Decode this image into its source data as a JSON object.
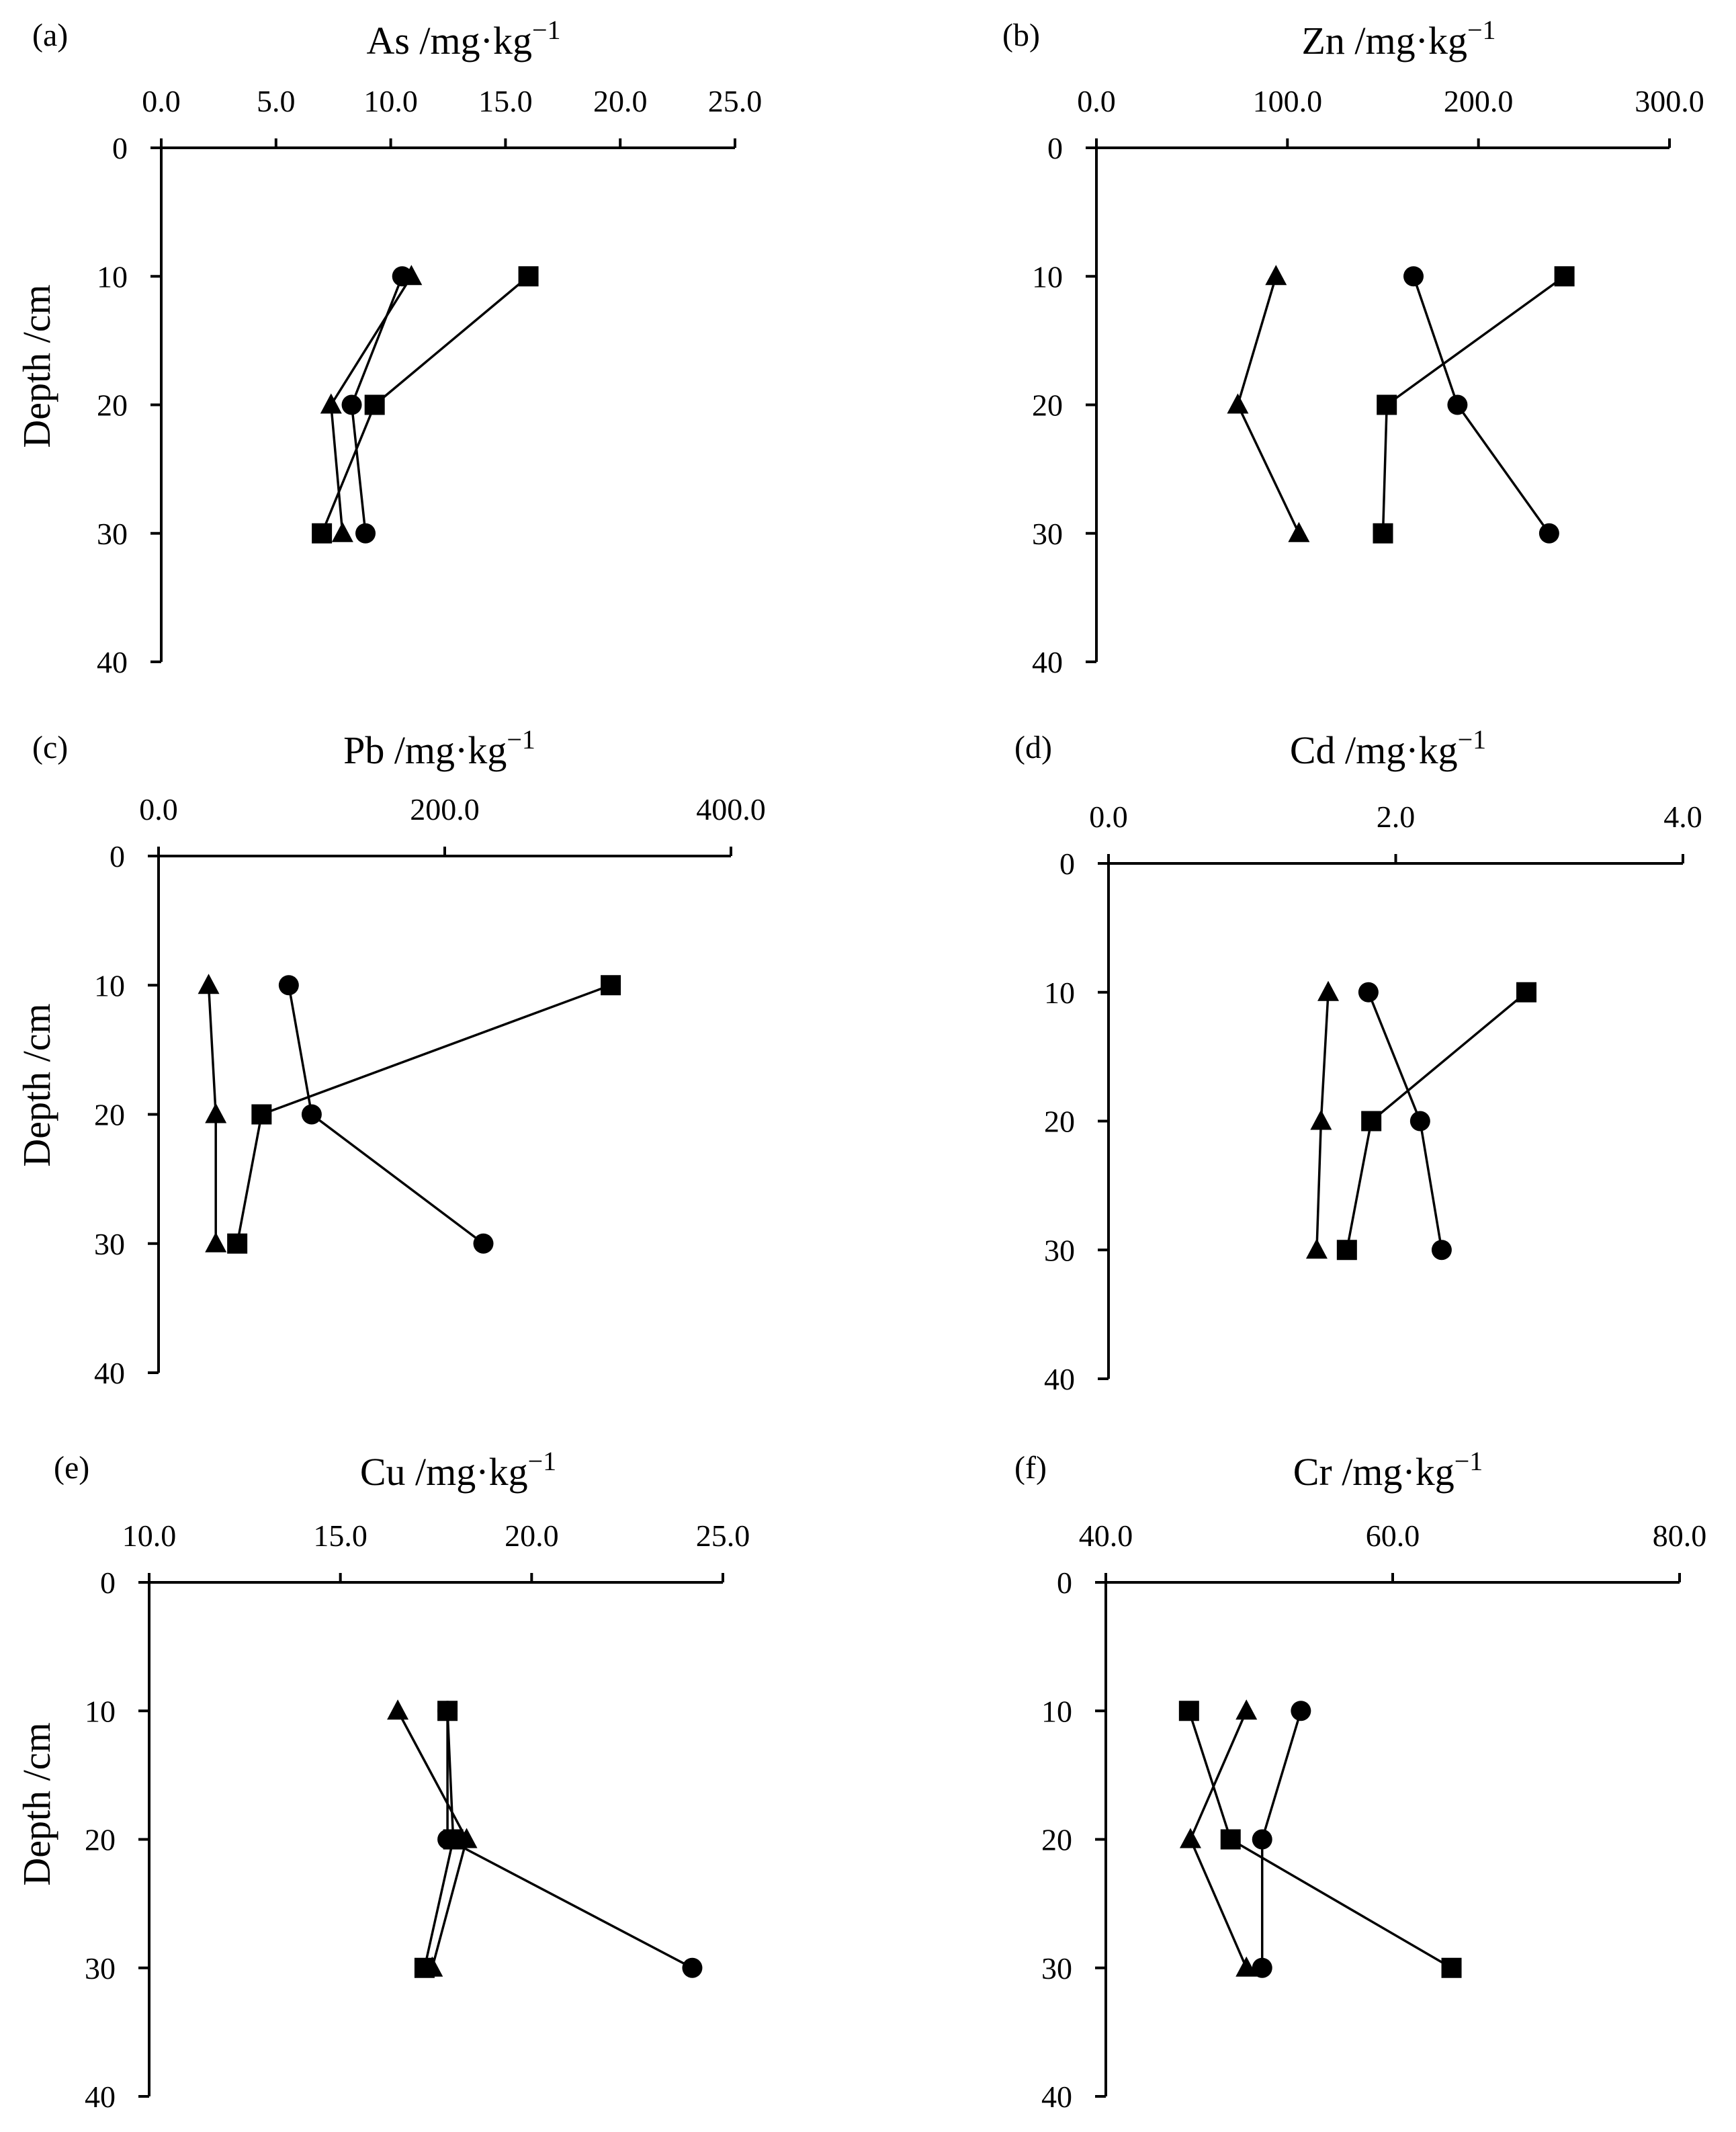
{
  "figure": {
    "description_free": true
  },
  "chart_data": [
    {
      "type": "line",
      "panel_label": "(a)",
      "title_text": "As /mg·kg",
      "title_exp": "−1",
      "xlim": [
        0,
        25
      ],
      "x_ticks": [
        "0.0",
        "5.0",
        "10.0",
        "15.0",
        "20.0",
        "25.0"
      ],
      "x_tick_values": [
        0,
        5,
        10,
        15,
        20,
        25
      ],
      "ylim": [
        0,
        40
      ],
      "y_ticks": [
        "0",
        "10",
        "20",
        "30",
        "40"
      ],
      "y_tick_values": [
        0,
        10,
        20,
        30,
        40
      ],
      "ylabel": "Depth /cm",
      "series": [
        {
          "name": "circle",
          "marker": "circle",
          "depth": [
            10,
            20,
            30
          ],
          "values": [
            10.5,
            8.3,
            8.9
          ]
        },
        {
          "name": "square",
          "marker": "square",
          "depth": [
            10,
            20,
            30
          ],
          "values": [
            16.0,
            9.3,
            7.0
          ]
        },
        {
          "name": "triangle",
          "marker": "triangle",
          "depth": [
            10,
            20,
            30
          ],
          "values": [
            10.9,
            7.4,
            7.9
          ]
        }
      ]
    },
    {
      "type": "line",
      "panel_label": "(b)",
      "title_text": "Zn /mg·kg",
      "title_exp": "−1",
      "xlim": [
        0,
        300
      ],
      "x_ticks": [
        "0.0",
        "100.0",
        "200.0",
        "300.0"
      ],
      "x_tick_values": [
        0,
        100,
        200,
        300
      ],
      "ylim": [
        0,
        40
      ],
      "y_ticks": [
        "0",
        "10",
        "20",
        "30",
        "40"
      ],
      "y_tick_values": [
        0,
        10,
        20,
        30,
        40
      ],
      "ylabel": "",
      "series": [
        {
          "name": "circle",
          "marker": "circle",
          "depth": [
            10,
            20,
            30
          ],
          "values": [
            166,
            189,
            237
          ]
        },
        {
          "name": "square",
          "marker": "square",
          "depth": [
            10,
            20,
            30
          ],
          "values": [
            245,
            152,
            150
          ]
        },
        {
          "name": "triangle",
          "marker": "triangle",
          "depth": [
            10,
            20,
            30
          ],
          "values": [
            94,
            74,
            106
          ]
        }
      ]
    },
    {
      "type": "line",
      "panel_label": "(c)",
      "title_text": "Pb /mg·kg",
      "title_exp": "−1",
      "xlim": [
        0,
        400
      ],
      "x_ticks": [
        "0.0",
        "200.0",
        "400.0"
      ],
      "x_tick_values": [
        0,
        200,
        400
      ],
      "ylim": [
        0,
        40
      ],
      "y_ticks": [
        "0",
        "10",
        "20",
        "30",
        "40"
      ],
      "y_tick_values": [
        0,
        10,
        20,
        30,
        40
      ],
      "ylabel": "Depth /cm",
      "series": [
        {
          "name": "circle",
          "marker": "circle",
          "depth": [
            10,
            20,
            30
          ],
          "values": [
            91,
            107,
            227
          ]
        },
        {
          "name": "square",
          "marker": "square",
          "depth": [
            10,
            20,
            30
          ],
          "values": [
            316,
            72,
            55
          ]
        },
        {
          "name": "triangle",
          "marker": "triangle",
          "depth": [
            10,
            20,
            30
          ],
          "values": [
            35,
            40,
            40
          ]
        }
      ]
    },
    {
      "type": "line",
      "panel_label": "(d)",
      "title_text": "Cd /mg·kg",
      "title_exp": "−1",
      "xlim": [
        0,
        4
      ],
      "x_ticks": [
        "0.0",
        "2.0",
        "4.0"
      ],
      "x_tick_values": [
        0,
        2,
        4
      ],
      "ylim": [
        0,
        40
      ],
      "y_ticks": [
        "0",
        "10",
        "20",
        "30",
        "40"
      ],
      "y_tick_values": [
        0,
        10,
        20,
        30,
        40
      ],
      "ylabel": "",
      "series": [
        {
          "name": "circle",
          "marker": "circle",
          "depth": [
            10,
            20,
            30
          ],
          "values": [
            1.81,
            2.17,
            2.32
          ]
        },
        {
          "name": "square",
          "marker": "square",
          "depth": [
            10,
            20,
            30
          ],
          "values": [
            2.91,
            1.83,
            1.66
          ]
        },
        {
          "name": "triangle",
          "marker": "triangle",
          "depth": [
            10,
            20,
            30
          ],
          "values": [
            1.53,
            1.48,
            1.45
          ]
        }
      ]
    },
    {
      "type": "line",
      "panel_label": "(e)",
      "title_text": "Cu /mg·kg",
      "title_exp": "−1",
      "xlim": [
        10,
        25
      ],
      "x_ticks": [
        "10.0",
        "15.0",
        "20.0",
        "25.0"
      ],
      "x_tick_values": [
        10,
        15,
        20,
        25
      ],
      "ylim": [
        0,
        40
      ],
      "y_ticks": [
        "0",
        "10",
        "20",
        "30",
        "40"
      ],
      "y_tick_values": [
        0,
        10,
        20,
        30,
        40
      ],
      "ylabel": "Depth /cm",
      "series": [
        {
          "name": "circle",
          "marker": "circle",
          "depth": [
            10,
            20,
            30
          ],
          "values": [
            17.8,
            17.8,
            24.2
          ]
        },
        {
          "name": "square",
          "marker": "square",
          "depth": [
            10,
            20,
            30
          ],
          "values": [
            17.8,
            17.95,
            17.2
          ]
        },
        {
          "name": "triangle",
          "marker": "triangle",
          "depth": [
            10,
            20,
            30
          ],
          "values": [
            16.5,
            18.3,
            17.4
          ]
        }
      ]
    },
    {
      "type": "line",
      "panel_label": "(f)",
      "title_text": "Cr /mg·kg",
      "title_exp": "−1",
      "xlim": [
        40,
        80
      ],
      "x_ticks": [
        "40.0",
        "60.0",
        "80.0"
      ],
      "x_tick_values": [
        40,
        60,
        80
      ],
      "ylim": [
        0,
        40
      ],
      "y_ticks": [
        "0",
        "10",
        "20",
        "30",
        "40"
      ],
      "y_tick_values": [
        0,
        10,
        20,
        30,
        40
      ],
      "ylabel": "",
      "series": [
        {
          "name": "circle",
          "marker": "circle",
          "depth": [
            10,
            20,
            30
          ],
          "values": [
            53.6,
            50.9,
            50.9
          ]
        },
        {
          "name": "square",
          "marker": "square",
          "depth": [
            10,
            20,
            30
          ],
          "values": [
            45.8,
            48.7,
            64.1
          ]
        },
        {
          "name": "triangle",
          "marker": "triangle",
          "depth": [
            10,
            20,
            30
          ],
          "values": [
            49.8,
            45.9,
            49.8
          ]
        }
      ]
    }
  ]
}
